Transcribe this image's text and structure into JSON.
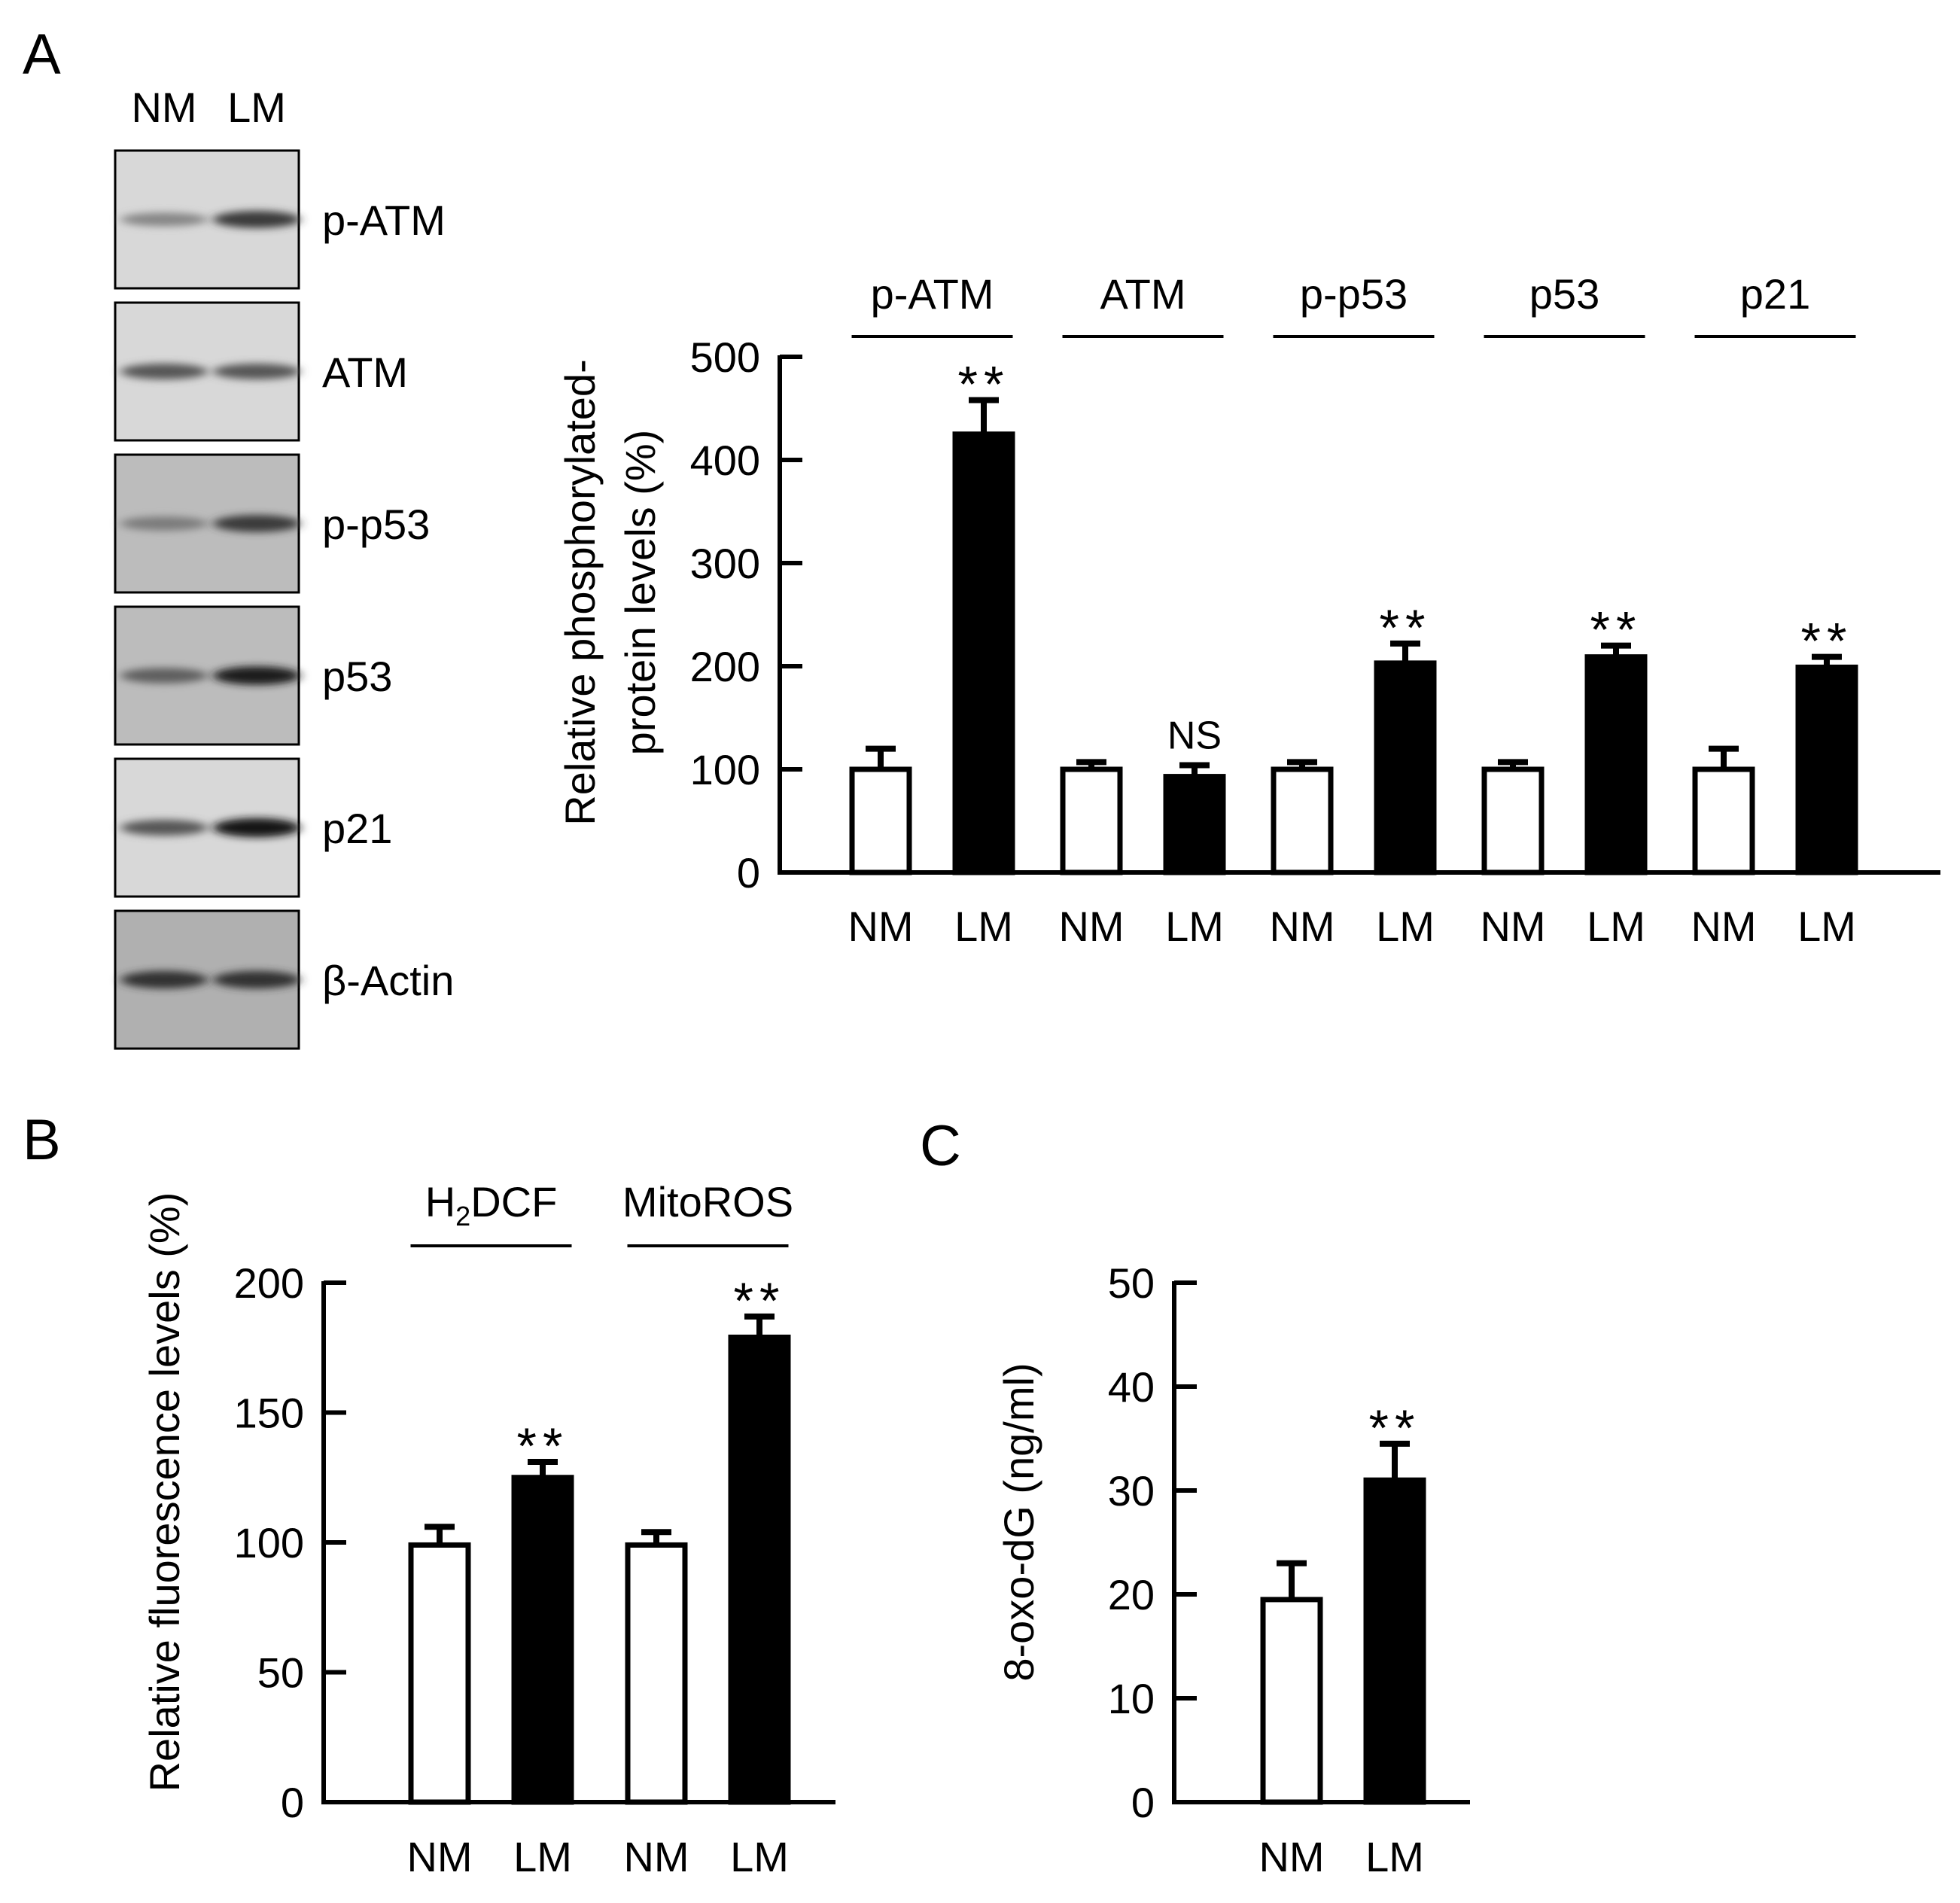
{
  "panels": {
    "A": "A",
    "B": "B",
    "C": "C"
  },
  "blot": {
    "lane_labels": [
      "NM",
      "LM"
    ],
    "bands": [
      {
        "name": "p-ATM",
        "label": "p-ATM",
        "nm_intensity": 0.35,
        "lm_intensity": 0.75,
        "tone": "light"
      },
      {
        "name": "ATM",
        "label": "ATM",
        "nm_intensity": 0.6,
        "lm_intensity": 0.6,
        "tone": "light"
      },
      {
        "name": "p-p53",
        "label": "p-p53",
        "nm_intensity": 0.4,
        "lm_intensity": 0.75,
        "tone": "mid"
      },
      {
        "name": "p53",
        "label": "p53",
        "nm_intensity": 0.55,
        "lm_intensity": 0.9,
        "tone": "mid"
      },
      {
        "name": "p21",
        "label": "p21",
        "nm_intensity": 0.6,
        "lm_intensity": 0.95,
        "tone": "light"
      },
      {
        "name": "beta-actin",
        "label": "β-Actin",
        "nm_intensity": 0.8,
        "lm_intensity": 0.8,
        "tone": "dark"
      }
    ]
  },
  "colors": {
    "NM": "#ffffff",
    "LM": "#000000",
    "outline": "#000000"
  },
  "chart_data": [
    {
      "id": "A",
      "type": "bar",
      "groups": [
        {
          "label": "p-ATM",
          "NM": 100,
          "LM": 425,
          "NM_err": 20,
          "LM_err": 33,
          "sig": "**"
        },
        {
          "label": "ATM",
          "NM": 100,
          "LM": 93,
          "NM_err": 7,
          "LM_err": 11,
          "sig": "NS"
        },
        {
          "label": "p-p53",
          "NM": 100,
          "LM": 203,
          "NM_err": 7,
          "LM_err": 19,
          "sig": "**"
        },
        {
          "label": "p53",
          "NM": 100,
          "LM": 209,
          "NM_err": 7,
          "LM_err": 11,
          "sig": "**"
        },
        {
          "label": "p21",
          "NM": 100,
          "LM": 199,
          "NM_err": 20,
          "LM_err": 10,
          "sig": "**"
        }
      ],
      "series": [
        {
          "name": "NM"
        },
        {
          "name": "LM"
        }
      ],
      "ylabel_lines": [
        "Relative phosphorylated-",
        "protein levels (%)"
      ],
      "ylim": [
        0,
        500
      ],
      "yticks": [
        0,
        100,
        200,
        300,
        400,
        500
      ]
    },
    {
      "id": "B",
      "type": "bar",
      "groups": [
        {
          "label": "H2DCF",
          "label_main": "H",
          "label_sub": "2",
          "label_rest": "DCF",
          "NM": 99,
          "LM": 125,
          "NM_err": 7,
          "LM_err": 6,
          "sig": "**"
        },
        {
          "label": "MitoROS",
          "NM": 99,
          "LM": 179,
          "NM_err": 5,
          "LM_err": 8,
          "sig": "**"
        }
      ],
      "series": [
        {
          "name": "NM"
        },
        {
          "name": "LM"
        }
      ],
      "ylabel_lines": [
        "Relative fluorescence levels (%)"
      ],
      "ylim": [
        0,
        200
      ],
      "yticks": [
        0,
        50,
        100,
        150,
        200
      ]
    },
    {
      "id": "C",
      "type": "bar",
      "groups": [
        {
          "label": "",
          "NM": 19.5,
          "LM": 31,
          "NM_err": 3.5,
          "LM_err": 3.5,
          "sig": "**"
        }
      ],
      "series": [
        {
          "name": "NM"
        },
        {
          "name": "LM"
        }
      ],
      "ylabel_lines": [
        "8-oxo-dG (ng/ml)"
      ],
      "ylim": [
        0,
        50
      ],
      "yticks": [
        0,
        10,
        20,
        30,
        40,
        50
      ]
    }
  ]
}
